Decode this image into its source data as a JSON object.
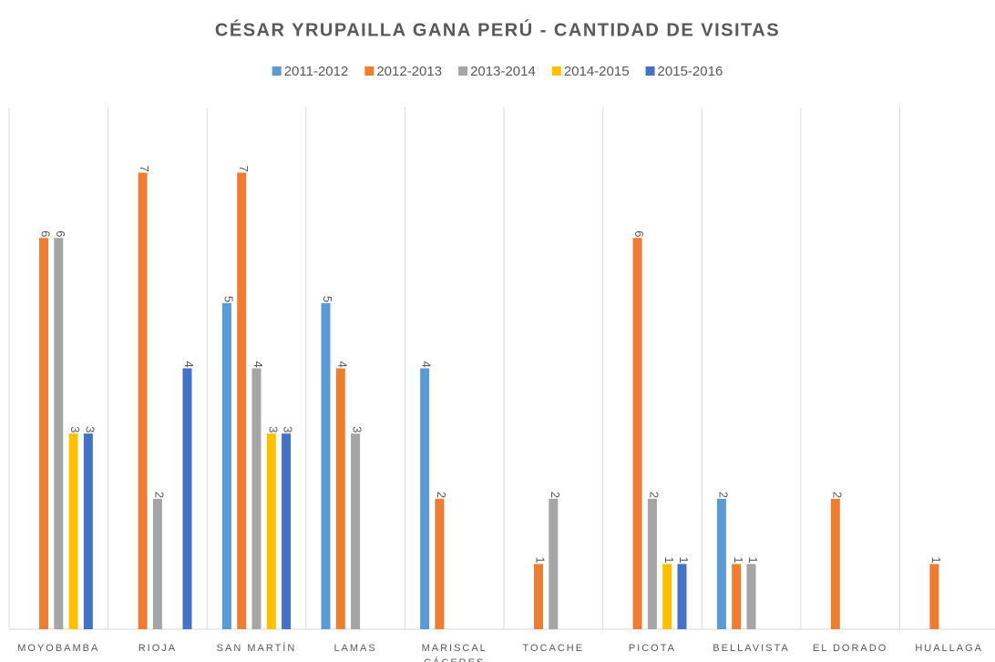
{
  "chart_data": {
    "type": "bar",
    "title": "CÉSAR YRUPAILLA GANA PERÚ - CANTIDAD DE VISITAS",
    "categories": [
      "MOYOBAMBA",
      "RIOJA",
      "SAN MARTÍN",
      "LAMAS",
      "MARISCAL CÁCERES",
      "TOCACHE",
      "PICOTA",
      "BELLAVISTA",
      "EL DORADO",
      "HUALLAGA"
    ],
    "series": [
      {
        "name": "2011-2012",
        "color": "#5b9bd5",
        "values": [
          null,
          null,
          5,
          5,
          4,
          null,
          null,
          2,
          null,
          null
        ]
      },
      {
        "name": "2012-2013",
        "color": "#ed7d31",
        "values": [
          6,
          7,
          7,
          4,
          2,
          1,
          6,
          1,
          2,
          1
        ]
      },
      {
        "name": "2013-2014",
        "color": "#a5a5a5",
        "values": [
          6,
          2,
          4,
          3,
          null,
          2,
          2,
          1,
          null,
          null
        ]
      },
      {
        "name": "2014-2015",
        "color": "#ffc000",
        "values": [
          3,
          null,
          3,
          null,
          null,
          null,
          1,
          null,
          null,
          null
        ]
      },
      {
        "name": "2015-2016",
        "color": "#4472c4",
        "values": [
          3,
          4,
          3,
          null,
          null,
          null,
          1,
          null,
          null,
          null
        ]
      }
    ],
    "ylim": [
      0,
      8
    ],
    "legend": "top"
  }
}
